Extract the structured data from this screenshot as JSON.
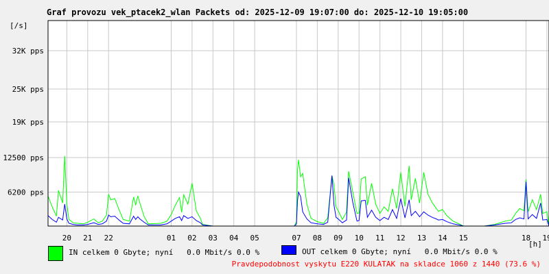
{
  "title": "Graf provozu vek_ptacek2_wlan Packets od: 2025-12-09 19:07:00 do: 2025-12-10 19:05:00",
  "legend": {
    "in": "IN celkem 0 Gbyte; nyní   0.0 Mbit/s 0.0 %",
    "out": "OUT celkem 0 Gbyte; nyní   0.0 Mbit/s 0.0 %"
  },
  "note": "Pravdepodobnost vyskytu E220 KULATAK na skladce 1060 z 1440 (73.6 %)",
  "colors": {
    "in": "#00ff00",
    "out": "#0000ff",
    "note": "#ff0000",
    "grid": "#c8c8c8"
  },
  "chart_data": {
    "type": "line",
    "ylabel": "[/s]",
    "xlabel": "[h]",
    "grid": true,
    "ylim": [
      0,
      37500
    ],
    "y_ticks": [
      {
        "value": 6200,
        "label": "6200 pps"
      },
      {
        "value": 12500,
        "label": "12500 pps"
      },
      {
        "value": 19000,
        "label": "19K pps"
      },
      {
        "value": 25000,
        "label": "25K pps"
      },
      {
        "value": 32000,
        "label": "32K pps"
      }
    ],
    "xlim": [
      19.1,
      43.1
    ],
    "x_ticks": [
      {
        "value": 20,
        "label": "20"
      },
      {
        "value": 21,
        "label": "21"
      },
      {
        "value": 22,
        "label": "22"
      },
      {
        "value": 25,
        "label": "01"
      },
      {
        "value": 26,
        "label": "02"
      },
      {
        "value": 27,
        "label": "03"
      },
      {
        "value": 28,
        "label": "04"
      },
      {
        "value": 29,
        "label": "05"
      },
      {
        "value": 31,
        "label": "07"
      },
      {
        "value": 32,
        "label": "08"
      },
      {
        "value": 33,
        "label": "09"
      },
      {
        "value": 34,
        "label": "10"
      },
      {
        "value": 35,
        "label": "11"
      },
      {
        "value": 36,
        "label": "12"
      },
      {
        "value": 37,
        "label": "13"
      },
      {
        "value": 38,
        "label": "14"
      },
      {
        "value": 39,
        "label": "15"
      },
      {
        "value": 42,
        "label": "18"
      },
      {
        "value": 43,
        "label": "19"
      }
    ],
    "series": [
      {
        "name": "IN",
        "x": [
          19.1,
          19.3,
          19.5,
          19.6,
          19.8,
          19.9,
          20.0,
          20.1,
          20.3,
          20.5,
          20.8,
          21.0,
          21.3,
          21.5,
          21.7,
          21.9,
          22.0,
          22.1,
          22.3,
          22.5,
          22.7,
          23.0,
          23.2,
          23.3,
          23.4,
          23.5,
          23.7,
          23.9,
          24.5,
          24.8,
          25.0,
          25.2,
          25.4,
          25.5,
          25.6,
          25.8,
          26.0,
          26.2,
          26.4,
          26.5,
          27.0,
          29.0,
          30.9,
          31.0,
          31.05,
          31.1,
          31.2,
          31.3,
          31.5,
          31.7,
          32.0,
          32.3,
          32.5,
          32.7,
          32.8,
          32.9,
          33.0,
          33.2,
          33.4,
          33.5,
          33.7,
          33.9,
          34.0,
          34.1,
          34.3,
          34.4,
          34.6,
          34.8,
          35.0,
          35.2,
          35.4,
          35.6,
          35.8,
          36.0,
          36.2,
          36.4,
          36.5,
          36.7,
          36.9,
          37.1,
          37.3,
          37.5,
          37.7,
          37.8,
          38.0,
          38.2,
          38.5,
          38.8,
          39.0,
          39.3,
          39.6,
          40.0,
          40.5,
          41.0,
          41.3,
          41.5,
          41.7,
          41.9,
          42.0,
          42.1,
          42.3,
          42.5,
          42.7,
          42.8,
          43.0,
          43.1
        ],
        "y": [
          5500,
          3500,
          1800,
          6500,
          4200,
          12800,
          4000,
          1200,
          600,
          500,
          400,
          700,
          1300,
          600,
          900,
          2000,
          5800,
          4800,
          5000,
          3000,
          1200,
          900,
          5300,
          3800,
          5500,
          4200,
          1800,
          400,
          500,
          900,
          2100,
          3800,
          5200,
          2500,
          5700,
          4000,
          7800,
          2800,
          1400,
          300,
          0,
          0,
          0,
          800,
          10200,
          12100,
          9000,
          9600,
          4000,
          1400,
          800,
          500,
          1500,
          9200,
          7500,
          3500,
          2800,
          1200,
          2600,
          10000,
          6200,
          2300,
          2400,
          8600,
          9000,
          3800,
          7800,
          4000,
          2300,
          3500,
          2700,
          6800,
          3200,
          9800,
          3600,
          11000,
          4800,
          8700,
          4200,
          9800,
          5800,
          4300,
          3200,
          2700,
          3000,
          1900,
          900,
          400,
          0,
          0,
          0,
          0,
          300,
          900,
          1100,
          2300,
          3200,
          2800,
          8500,
          2600,
          4800,
          3000,
          5800,
          2300,
          2600,
          0
        ]
      },
      {
        "name": "OUT",
        "x": [
          19.1,
          19.3,
          19.5,
          19.6,
          19.8,
          19.9,
          20.0,
          20.1,
          20.3,
          20.5,
          20.8,
          21.0,
          21.3,
          21.5,
          21.7,
          21.9,
          22.0,
          22.1,
          22.3,
          22.5,
          22.7,
          23.0,
          23.2,
          23.3,
          23.4,
          23.5,
          23.7,
          23.9,
          24.5,
          24.8,
          25.0,
          25.2,
          25.4,
          25.5,
          25.6,
          25.8,
          26.0,
          26.2,
          26.4,
          26.5,
          27.0,
          29.0,
          30.9,
          31.0,
          31.05,
          31.1,
          31.2,
          31.3,
          31.5,
          31.7,
          32.0,
          32.3,
          32.5,
          32.7,
          32.8,
          32.9,
          33.0,
          33.2,
          33.4,
          33.5,
          33.7,
          33.9,
          34.0,
          34.1,
          34.3,
          34.4,
          34.6,
          34.8,
          35.0,
          35.2,
          35.4,
          35.6,
          35.8,
          36.0,
          36.2,
          36.4,
          36.5,
          36.7,
          36.9,
          37.1,
          37.3,
          37.5,
          37.7,
          37.8,
          38.0,
          38.2,
          38.5,
          38.8,
          39.0,
          39.3,
          39.6,
          40.0,
          40.5,
          41.0,
          41.3,
          41.5,
          41.7,
          41.9,
          42.0,
          42.1,
          42.3,
          42.5,
          42.7,
          42.8,
          43.0,
          43.1
        ],
        "y": [
          1900,
          1200,
          700,
          1600,
          1100,
          4000,
          1300,
          500,
          300,
          200,
          200,
          300,
          600,
          300,
          400,
          900,
          2000,
          1700,
          1800,
          1100,
          500,
          400,
          1800,
          1200,
          1700,
          1300,
          700,
          200,
          200,
          400,
          900,
          1400,
          1700,
          1000,
          1900,
          1400,
          1700,
          1000,
          600,
          200,
          0,
          0,
          0,
          400,
          4600,
          6200,
          5400,
          2600,
          1300,
          600,
          400,
          300,
          700,
          9200,
          3800,
          1600,
          1300,
          600,
          1100,
          8800,
          4300,
          900,
          1000,
          4600,
          4700,
          1600,
          2900,
          1600,
          1000,
          1600,
          1200,
          3000,
          1400,
          5000,
          1500,
          4800,
          1900,
          2700,
          1700,
          2600,
          2000,
          1600,
          1300,
          1100,
          1200,
          800,
          400,
          200,
          0,
          0,
          0,
          0,
          200,
          500,
          600,
          1200,
          1500,
          1300,
          8100,
          1300,
          2100,
          1400,
          4200,
          1100,
          1200,
          0
        ]
      }
    ]
  }
}
